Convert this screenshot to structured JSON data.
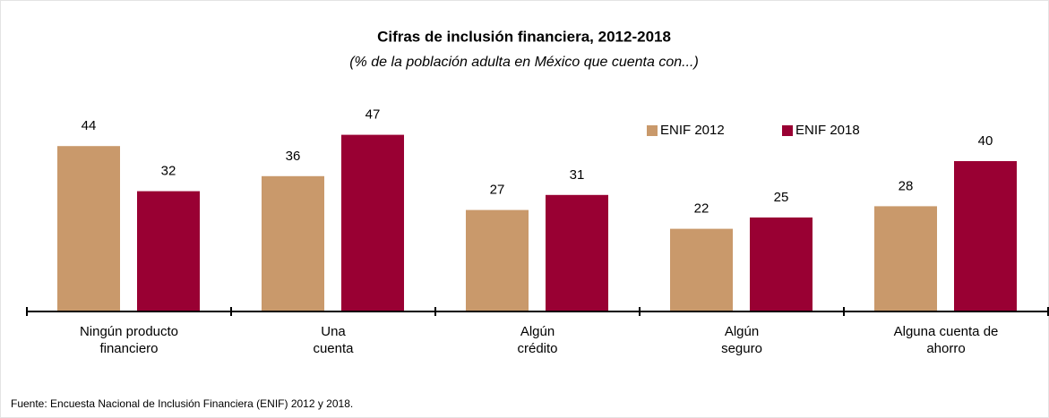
{
  "chart_data": {
    "type": "bar",
    "title": "Cifras de inclusión financiera, 2012-2018",
    "subtitle": "(% de la población adulta en México que cuenta con...)",
    "categories": [
      "Ningún producto\nfinanciero",
      "Una\ncuenta",
      "Algún\ncrédito",
      "Algún\nseguro",
      "Alguna cuenta de\nahorro"
    ],
    "series": [
      {
        "name": "ENIF 2012",
        "color": "#c9996b",
        "values": [
          44,
          36,
          27,
          22,
          28
        ]
      },
      {
        "name": "ENIF 2018",
        "color": "#990033",
        "values": [
          32,
          47,
          31,
          25,
          40
        ]
      }
    ],
    "ylim": [
      0,
      50
    ],
    "legend": "top-right",
    "source": "Fuente: Encuesta Nacional de Inclusión Financiera (ENIF) 2012 y 2018."
  }
}
